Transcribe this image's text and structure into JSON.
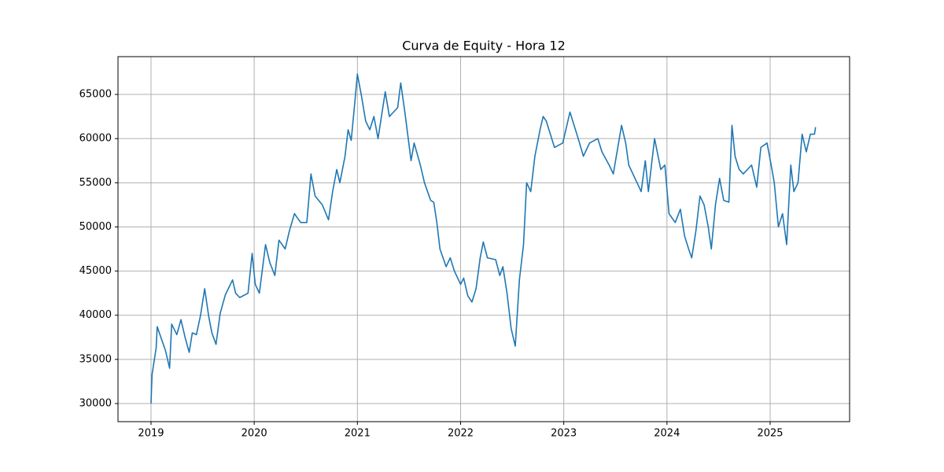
{
  "chart_data": {
    "type": "line",
    "title": "Curva de Equity - Hora 12",
    "x": [
      2019.0,
      2019.01,
      2019.05,
      2019.06,
      2019.14,
      2019.18,
      2019.2,
      2019.25,
      2019.29,
      2019.33,
      2019.37,
      2019.4,
      2019.44,
      2019.48,
      2019.52,
      2019.56,
      2019.59,
      2019.63,
      2019.67,
      2019.72,
      2019.79,
      2019.82,
      2019.86,
      2019.94,
      2019.98,
      2020.01,
      2020.05,
      2020.11,
      2020.15,
      2020.2,
      2020.24,
      2020.3,
      2020.34,
      2020.39,
      2020.45,
      2020.51,
      2020.55,
      2020.59,
      2020.66,
      2020.72,
      2020.76,
      2020.8,
      2020.83,
      2020.88,
      2020.91,
      2020.94,
      2020.97,
      2021.0,
      2021.04,
      2021.08,
      2021.12,
      2021.16,
      2021.2,
      2021.27,
      2021.31,
      2021.39,
      2021.42,
      2021.46,
      2021.52,
      2021.55,
      2021.61,
      2021.65,
      2021.71,
      2021.74,
      2021.77,
      2021.8,
      2021.86,
      2021.9,
      2021.94,
      2022.0,
      2022.03,
      2022.07,
      2022.11,
      2022.15,
      2022.19,
      2022.22,
      2022.26,
      2022.34,
      2022.38,
      2022.41,
      2022.45,
      2022.49,
      2022.53,
      2022.57,
      2022.61,
      2022.64,
      2022.68,
      2022.72,
      2022.77,
      2022.8,
      2022.83,
      2022.91,
      2022.99,
      2023.06,
      2023.14,
      2023.19,
      2023.25,
      2023.33,
      2023.37,
      2023.44,
      2023.48,
      2023.56,
      2023.6,
      2023.63,
      2023.71,
      2023.75,
      2023.79,
      2023.82,
      2023.88,
      2023.94,
      2023.98,
      2024.02,
      2024.08,
      2024.13,
      2024.17,
      2024.21,
      2024.24,
      2024.28,
      2024.32,
      2024.36,
      2024.4,
      2024.43,
      2024.47,
      2024.51,
      2024.55,
      2024.6,
      2024.63,
      2024.66,
      2024.7,
      2024.74,
      2024.82,
      2024.87,
      2024.91,
      2024.97,
      2025.01,
      2025.04,
      2025.08,
      2025.12,
      2025.16,
      2025.2,
      2025.23,
      2025.27,
      2025.31,
      2025.35,
      2025.39,
      2025.43,
      2025.44
    ],
    "series": [
      {
        "color": "#1f77b4",
        "values": [
          30000,
          33300,
          36300,
          38700,
          36000,
          34000,
          39000,
          37800,
          39500,
          37500,
          35800,
          38000,
          37800,
          40000,
          43000,
          39800,
          38000,
          36700,
          40200,
          42300,
          44000,
          42500,
          42000,
          42500,
          47000,
          43500,
          42500,
          48000,
          46000,
          44500,
          48500,
          47500,
          49500,
          51500,
          50500,
          50500,
          56000,
          53500,
          52500,
          50800,
          54000,
          56500,
          55000,
          58000,
          61000,
          59800,
          63500,
          67300,
          64800,
          62000,
          61000,
          62500,
          60000,
          65300,
          62500,
          63500,
          66300,
          63000,
          57500,
          59500,
          57000,
          55000,
          53000,
          52800,
          50500,
          47500,
          45500,
          46500,
          45000,
          43500,
          44200,
          42200,
          41500,
          43000,
          46500,
          48300,
          46500,
          46300,
          44500,
          45500,
          42500,
          38500,
          36500,
          44000,
          48000,
          55000,
          54000,
          58000,
          61000,
          62500,
          62000,
          59000,
          59500,
          63000,
          60000,
          58000,
          59500,
          60000,
          58500,
          57000,
          56000,
          61500,
          59500,
          57000,
          55000,
          54000,
          57500,
          54000,
          60000,
          56500,
          57000,
          51500,
          50500,
          52000,
          49000,
          47500,
          46500,
          49500,
          53500,
          52500,
          50000,
          47500,
          52500,
          55500,
          53000,
          52800,
          61500,
          58000,
          56500,
          56000,
          57000,
          54500,
          59000,
          59500,
          57000,
          55000,
          50000,
          51500,
          48000,
          57000,
          54000,
          55000,
          60500,
          58500,
          60500,
          60500,
          61300
        ]
      }
    ],
    "xlim": [
      2018.68,
      2025.77
    ],
    "xticks": [
      2019,
      2020,
      2021,
      2022,
      2023,
      2024,
      2025
    ],
    "ylim": [
      27950,
      69280
    ],
    "yticks": [
      30000,
      35000,
      40000,
      45000,
      50000,
      55000,
      60000,
      65000
    ],
    "grid": true
  }
}
